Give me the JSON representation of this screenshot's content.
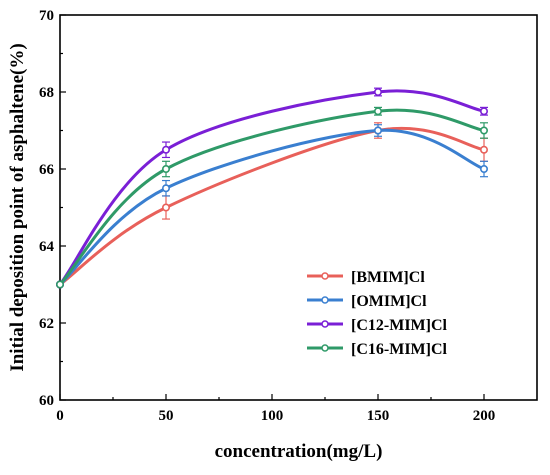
{
  "chart_data": {
    "type": "line",
    "xlabel": "concentration(mg/L)",
    "ylabel": "Initial deposition point of asphaltene(%)",
    "xlim": [
      0,
      225
    ],
    "ylim": [
      60,
      70
    ],
    "x_ticks": [
      0,
      50,
      100,
      150,
      200
    ],
    "y_ticks": [
      60,
      62,
      64,
      66,
      68,
      70
    ],
    "x_tick_labels": [
      "0",
      "50",
      "100",
      "150",
      "200"
    ],
    "y_tick_labels": [
      "60",
      "62",
      "64",
      "66",
      "68",
      "70"
    ],
    "x": [
      0,
      50,
      150,
      200
    ],
    "grid": false,
    "legend_position": "center-right",
    "series": [
      {
        "name": "[BMIM]Cl",
        "color": "#e8605a",
        "values": [
          63.0,
          65.0,
          67.0,
          66.5
        ],
        "errors": [
          0,
          0.3,
          0.2,
          0.3
        ]
      },
      {
        "name": "[OMIM]Cl",
        "color": "#3a7fd0",
        "values": [
          63.0,
          65.5,
          67.0,
          66.0
        ],
        "errors": [
          0,
          0.2,
          0.15,
          0.2
        ]
      },
      {
        "name": "[C12-MIM]Cl",
        "color": "#7a1fd6",
        "values": [
          63.0,
          66.5,
          68.0,
          67.5
        ],
        "errors": [
          0,
          0.2,
          0.1,
          0.1
        ]
      },
      {
        "name": "[C16-MIM]Cl",
        "color": "#2f9a68",
        "values": [
          63.0,
          66.0,
          67.5,
          67.0
        ],
        "errors": [
          0,
          0.2,
          0.1,
          0.2
        ]
      }
    ]
  }
}
